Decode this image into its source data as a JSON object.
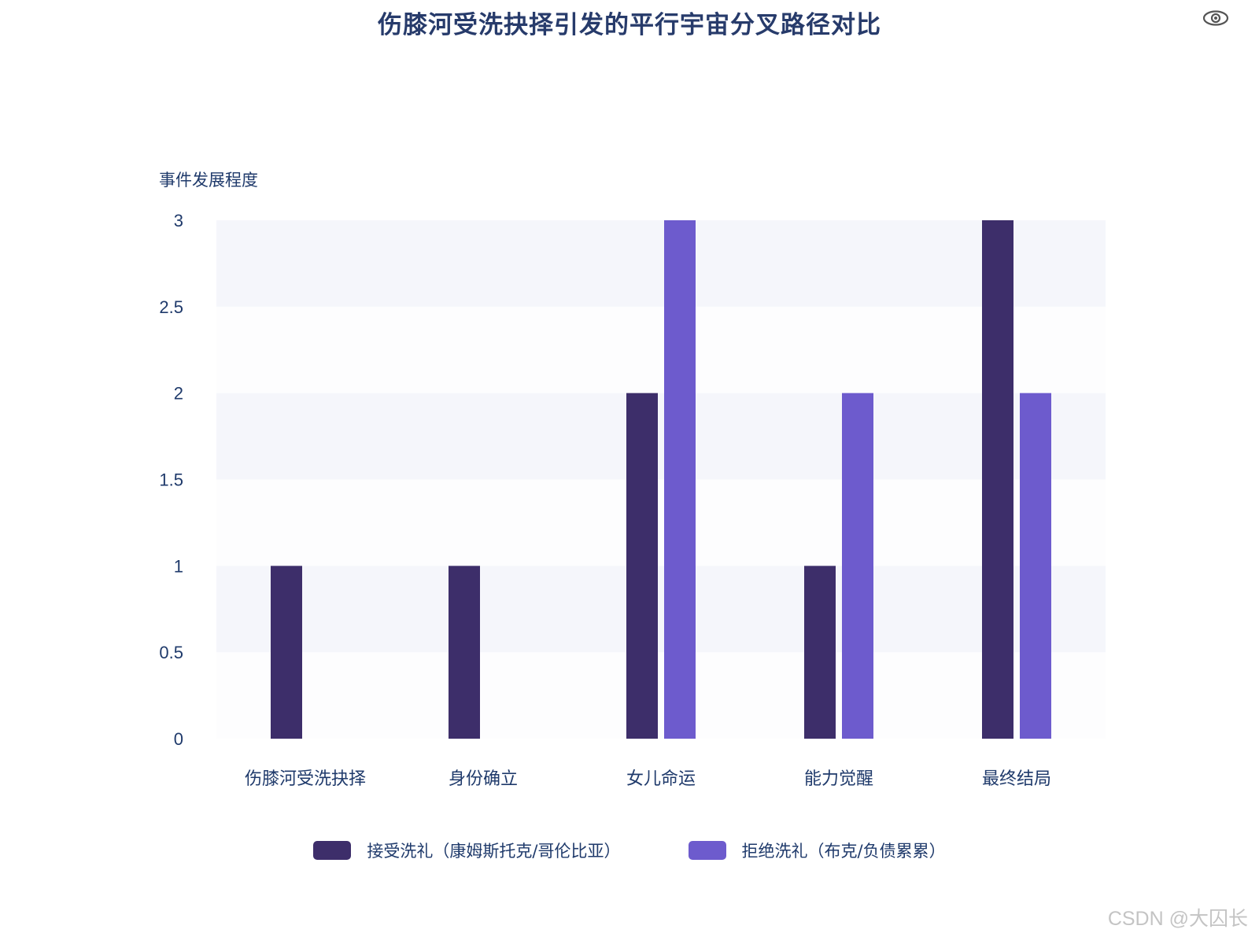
{
  "colors": {
    "accept": "#3d2e6a",
    "reject": "#6d5bcd",
    "band_light": "#f5f6fb",
    "band_white": "#fdfdfe",
    "text": "#1f3a6b"
  },
  "icons": {
    "toggle": "eye-icon"
  },
  "watermark": "CSDN @大囚长",
  "chart_data": {
    "type": "bar",
    "title": "伤膝河受洗抉择引发的平行宇宙分叉路径对比",
    "ylabel": "事件发展程度",
    "xlabel": "",
    "ylim": [
      0,
      3
    ],
    "yticks": [
      0,
      0.5,
      1,
      1.5,
      2,
      2.5,
      3
    ],
    "categories": [
      "伤膝河受洗抉择",
      "身份确立",
      "女儿命运",
      "能力觉醒",
      "最终结局"
    ],
    "series": [
      {
        "name": "接受洗礼（康姆斯托克/哥伦比亚）",
        "values": [
          1,
          1,
          2,
          1,
          3
        ]
      },
      {
        "name": "拒绝洗礼（布克/负债累累）",
        "values": [
          0,
          0,
          3,
          2,
          2
        ]
      }
    ],
    "legend_position": "bottom-center",
    "grid": "alternating bands"
  }
}
